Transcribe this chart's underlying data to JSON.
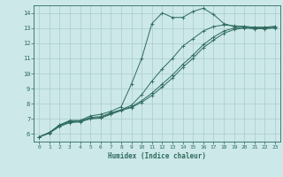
{
  "xlabel": "Humidex (Indice chaleur)",
  "ylabel": "",
  "bg_color": "#cce8e8",
  "grid_color": "#aacccc",
  "line_color": "#2e6b5e",
  "xlim": [
    -0.5,
    23.5
  ],
  "ylim": [
    5.5,
    14.5
  ],
  "xticks": [
    0,
    1,
    2,
    3,
    4,
    5,
    6,
    7,
    8,
    9,
    10,
    11,
    12,
    13,
    14,
    15,
    16,
    17,
    18,
    19,
    20,
    21,
    22,
    23
  ],
  "yticks": [
    6,
    7,
    8,
    9,
    10,
    11,
    12,
    13,
    14
  ],
  "line1_x": [
    0,
    1,
    2,
    3,
    4,
    5,
    6,
    7,
    8,
    9,
    10,
    11,
    12,
    13,
    14,
    15,
    16,
    17,
    18,
    19,
    20,
    21,
    22,
    23
  ],
  "line1_y": [
    5.8,
    6.1,
    6.6,
    6.9,
    6.9,
    7.2,
    7.3,
    7.5,
    7.8,
    9.3,
    11.0,
    13.3,
    14.0,
    13.7,
    13.7,
    14.1,
    14.3,
    13.9,
    13.3,
    13.1,
    13.1,
    13.05,
    13.05,
    13.1
  ],
  "line2_x": [
    0,
    1,
    2,
    3,
    4,
    5,
    6,
    7,
    8,
    9,
    10,
    11,
    12,
    13,
    14,
    15,
    16,
    17,
    18,
    19,
    20,
    21,
    22,
    23
  ],
  "line2_y": [
    5.8,
    6.1,
    6.6,
    6.85,
    6.85,
    7.1,
    7.15,
    7.4,
    7.6,
    7.9,
    8.6,
    9.5,
    10.3,
    11.0,
    11.8,
    12.3,
    12.8,
    13.1,
    13.2,
    13.15,
    13.1,
    13.05,
    13.05,
    13.1
  ],
  "line3_x": [
    0,
    1,
    2,
    3,
    4,
    5,
    6,
    7,
    8,
    9,
    10,
    11,
    12,
    13,
    14,
    15,
    16,
    17,
    18,
    19,
    20,
    21,
    22,
    23
  ],
  "line3_y": [
    5.8,
    6.1,
    6.55,
    6.8,
    6.85,
    7.05,
    7.1,
    7.35,
    7.6,
    7.8,
    8.2,
    8.7,
    9.3,
    9.9,
    10.6,
    11.2,
    11.9,
    12.4,
    12.8,
    13.0,
    13.05,
    13.0,
    13.0,
    13.05
  ],
  "line4_x": [
    0,
    1,
    2,
    3,
    4,
    5,
    6,
    7,
    8,
    9,
    10,
    11,
    12,
    13,
    14,
    15,
    16,
    17,
    18,
    19,
    20,
    21,
    22,
    23
  ],
  "line4_y": [
    5.8,
    6.05,
    6.5,
    6.75,
    6.8,
    7.0,
    7.05,
    7.3,
    7.55,
    7.75,
    8.1,
    8.55,
    9.1,
    9.7,
    10.4,
    11.0,
    11.7,
    12.2,
    12.65,
    12.9,
    13.0,
    12.95,
    12.95,
    13.0
  ]
}
